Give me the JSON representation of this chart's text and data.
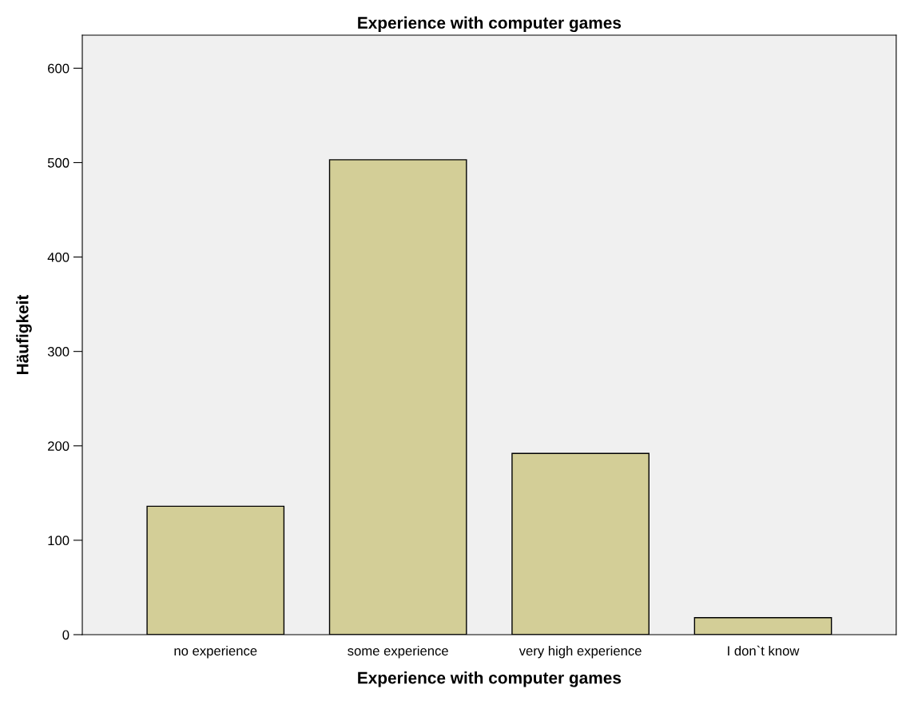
{
  "chart_data": {
    "type": "bar",
    "title": "Experience with computer games",
    "xlabel": "Experience with computer games",
    "ylabel": "Häufigkeit",
    "categories": [
      "no experience",
      "some experience",
      "very high experience",
      "I don`t know"
    ],
    "values": [
      136,
      503,
      192,
      18
    ],
    "color": "#d3ce97",
    "ylim": [
      0,
      635
    ],
    "yticks": [
      0,
      100,
      200,
      300,
      400,
      500,
      600
    ],
    "grid": false
  }
}
